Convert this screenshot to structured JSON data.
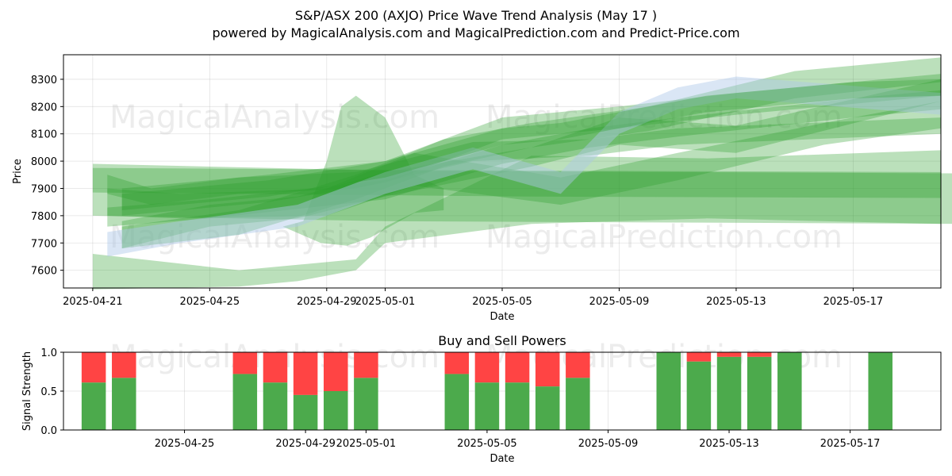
{
  "title": "S&P/ASX 200 (AXJO) Price Wave Trend Analysis (May 17 )",
  "subtitle": "powered by MagicalAnalysis.com and MagicalPrediction.com and Predict-Price.com",
  "watermarks": [
    "MagicalAnalysis.com",
    "MagicalPrediction.com"
  ],
  "colors": {
    "green": "#2ca02c",
    "red": "#ff4444",
    "blue": "#aec7e8",
    "bar_green": "#4caa4c"
  },
  "chart_data": [
    {
      "type": "area",
      "title": "",
      "xlabel": "Date",
      "ylabel": "Price",
      "xlim": [
        "2025-04-20",
        "2025-05-20"
      ],
      "ylim": [
        7535,
        8390
      ],
      "x_ticks": [
        "2025-04-21",
        "2025-04-25",
        "2025-04-29",
        "2025-05-01",
        "2025-05-05",
        "2025-05-09",
        "2025-05-13",
        "2025-05-17"
      ],
      "y_ticks": [
        7600,
        7700,
        7800,
        7900,
        8000,
        8100,
        8200,
        8300
      ],
      "grid": true,
      "series": [
        {
          "color": "green",
          "upper": [
            [
              0.0,
              7990
            ],
            [
              10.0,
              7965
            ],
            [
              20.0,
              7960
            ],
            [
              30.0,
              7955
            ]
          ],
          "lower": [
            [
              0.0,
              7800
            ],
            [
              10.0,
              7780
            ],
            [
              20.0,
              7775
            ],
            [
              30.0,
              7770
            ]
          ]
        },
        {
          "color": "green",
          "upper": [
            [
              0.0,
              7975
            ],
            [
              15.0,
              7965
            ],
            [
              29.0,
              7960
            ]
          ],
          "lower": [
            [
              0.0,
              7885
            ],
            [
              15.0,
              7870
            ],
            [
              29.0,
              7865
            ]
          ]
        },
        {
          "color": "green",
          "upper": [
            [
              0.0,
              7660
            ],
            [
              5.0,
              7600
            ],
            [
              9.0,
              7640
            ],
            [
              10.0,
              7760
            ],
            [
              15.0,
              8020
            ],
            [
              21.0,
              8010
            ],
            [
              29.0,
              8040
            ]
          ],
          "lower": [
            [
              0.0,
              7530
            ],
            [
              5.0,
              7540
            ],
            [
              7.0,
              7560
            ],
            [
              9.0,
              7600
            ],
            [
              10.0,
              7700
            ],
            [
              15.0,
              7770
            ],
            [
              21.0,
              7790
            ],
            [
              29.0,
              7770
            ]
          ]
        },
        {
          "color": "green",
          "upper": [
            [
              7.2,
              7780
            ],
            [
              8.0,
              8000
            ],
            [
              8.5,
              8200
            ],
            [
              9.0,
              8240
            ],
            [
              10.0,
              8160
            ],
            [
              11.0,
              7950
            ],
            [
              12.0,
              7900
            ]
          ],
          "lower": [
            [
              6.5,
              7760
            ],
            [
              7.8,
              7700
            ],
            [
              8.7,
              7690
            ],
            [
              9.5,
              7720
            ],
            [
              11.0,
              7810
            ],
            [
              12.0,
              7820
            ]
          ]
        },
        {
          "color": "green",
          "upper": [
            [
              1.0,
              7780
            ],
            [
              4.0,
              7840
            ],
            [
              7.0,
              7870
            ],
            [
              10.0,
              7960
            ],
            [
              15.0,
              8050
            ],
            [
              18.0,
              8160
            ],
            [
              22.0,
              8130
            ],
            [
              29.0,
              8300
            ]
          ],
          "lower": [
            [
              1.0,
              7680
            ],
            [
              4.0,
              7760
            ],
            [
              7.0,
              7790
            ],
            [
              10.0,
              7870
            ],
            [
              15.0,
              7980
            ],
            [
              18.0,
              8060
            ],
            [
              22.0,
              8030
            ],
            [
              29.0,
              8220
            ]
          ]
        },
        {
          "color": "green",
          "upper": [
            [
              1.0,
              7760
            ],
            [
              5.0,
              7820
            ],
            [
              9.0,
              7950
            ],
            [
              12.0,
              8080
            ],
            [
              15.0,
              8140
            ],
            [
              19.0,
              8200
            ],
            [
              24.0,
              8330
            ],
            [
              29.0,
              8380
            ]
          ],
          "lower": [
            [
              1.0,
              7680
            ],
            [
              5.0,
              7730
            ],
            [
              9.0,
              7860
            ],
            [
              12.0,
              7980
            ],
            [
              15.0,
              8050
            ],
            [
              19.0,
              8110
            ],
            [
              24.0,
              8230
            ],
            [
              29.0,
              8290
            ]
          ]
        },
        {
          "color": "green",
          "upper": [
            [
              0.5,
              7900
            ],
            [
              3.0,
              7880
            ],
            [
              8.0,
              7900
            ],
            [
              11.0,
              8030
            ],
            [
              16.0,
              7940
            ],
            [
              20.0,
              8030
            ],
            [
              25.0,
              8140
            ],
            [
              29.0,
              8220
            ]
          ],
          "lower": [
            [
              0.5,
              7800
            ],
            [
              3.0,
              7790
            ],
            [
              8.0,
              7800
            ],
            [
              11.0,
              7910
            ],
            [
              16.0,
              7840
            ],
            [
              20.0,
              7930
            ],
            [
              25.0,
              8060
            ],
            [
              29.0,
              8120
            ]
          ]
        },
        {
          "color": "green",
          "upper": [
            [
              1.0,
              7900
            ],
            [
              6.0,
              7950
            ],
            [
              10.0,
              8000
            ],
            [
              14.0,
              8160
            ],
            [
              18.0,
              8200
            ],
            [
              22.0,
              8250
            ],
            [
              29.0,
              8320
            ]
          ],
          "lower": [
            [
              1.0,
              7800
            ],
            [
              6.0,
              7850
            ],
            [
              10.0,
              7920
            ],
            [
              14.0,
              8080
            ],
            [
              18.0,
              8120
            ],
            [
              22.0,
              8170
            ],
            [
              29.0,
              8240
            ]
          ]
        },
        {
          "color": "green",
          "upper": [
            [
              0.5,
              7830
            ],
            [
              4.0,
              7860
            ],
            [
              10.0,
              7930
            ],
            [
              14.0,
              8060
            ],
            [
              17.0,
              8120
            ],
            [
              20.0,
              8160
            ],
            [
              26.0,
              8230
            ],
            [
              29.0,
              8260
            ]
          ],
          "lower": [
            [
              0.5,
              7760
            ],
            [
              4.0,
              7790
            ],
            [
              10.0,
              7860
            ],
            [
              14.0,
              7990
            ],
            [
              17.0,
              8050
            ],
            [
              20.0,
              8090
            ],
            [
              26.0,
              8160
            ],
            [
              29.0,
              8190
            ]
          ]
        },
        {
          "color": "green",
          "upper": [
            [
              0.5,
              7950
            ],
            [
              2.0,
              7900
            ],
            [
              5.0,
              7940
            ],
            [
              9.0,
              7960
            ],
            [
              13.0,
              8070
            ],
            [
              17.0,
              8080
            ],
            [
              20.0,
              8120
            ],
            [
              29.0,
              8160
            ]
          ],
          "lower": [
            [
              0.5,
              7880
            ],
            [
              2.0,
              7840
            ],
            [
              5.0,
              7880
            ],
            [
              9.0,
              7900
            ],
            [
              13.0,
              8000
            ],
            [
              17.0,
              8020
            ],
            [
              20.0,
              8060
            ],
            [
              29.0,
              8100
            ]
          ]
        },
        {
          "color": "blue",
          "upper": [
            [
              0.5,
              7740
            ],
            [
              3.0,
              7780
            ],
            [
              7.0,
              7840
            ],
            [
              10.0,
              7960
            ],
            [
              13.0,
              8050
            ],
            [
              16.0,
              7960
            ],
            [
              18.0,
              8180
            ],
            [
              20.0,
              8270
            ],
            [
              22.0,
              8310
            ],
            [
              29.0,
              8250
            ]
          ],
          "lower": [
            [
              0.5,
              7650
            ],
            [
              3.0,
              7700
            ],
            [
              7.0,
              7760
            ],
            [
              10.0,
              7880
            ],
            [
              13.0,
              7970
            ],
            [
              16.0,
              7880
            ],
            [
              18.0,
              8100
            ],
            [
              20.0,
              8190
            ],
            [
              22.0,
              8230
            ],
            [
              29.0,
              8170
            ]
          ]
        },
        {
          "color": "green",
          "upper": [
            [
              1.0,
              7880
            ],
            [
              6.0,
              7930
            ],
            [
              10.0,
              8000
            ],
            [
              14.0,
              8120
            ],
            [
              16.0,
              8140
            ],
            [
              21.0,
              8240
            ],
            [
              26.0,
              8290
            ],
            [
              29.0,
              8300
            ]
          ],
          "lower": [
            [
              1.0,
              7820
            ],
            [
              6.0,
              7870
            ],
            [
              10.0,
              7940
            ],
            [
              14.0,
              8060
            ],
            [
              16.0,
              8080
            ],
            [
              21.0,
              8180
            ],
            [
              26.0,
              8230
            ],
            [
              29.0,
              8240
            ]
          ]
        }
      ]
    },
    {
      "type": "bar",
      "title": "Buy and Sell Powers",
      "xlabel": "Date",
      "ylabel": "Signal Strength",
      "xlim": [
        "2025-04-21",
        "2025-05-20"
      ],
      "ylim": [
        0,
        1.0
      ],
      "x_ticks": [
        "2025-04-25",
        "2025-04-29",
        "2025-05-01",
        "2025-05-05",
        "2025-05-09",
        "2025-05-13",
        "2025-05-17"
      ],
      "y_ticks": [
        0.0,
        0.5,
        1.0
      ],
      "series": [
        {
          "name": "Buy",
          "color": "green"
        },
        {
          "name": "Sell",
          "color": "red"
        }
      ],
      "bars": [
        {
          "date": "2025-04-22",
          "buy": 0.61
        },
        {
          "date": "2025-04-23",
          "buy": 0.67
        },
        {
          "date": "2025-04-27",
          "buy": 0.72
        },
        {
          "date": "2025-04-28",
          "buy": 0.61
        },
        {
          "date": "2025-04-29",
          "buy": 0.45
        },
        {
          "date": "2025-04-30",
          "buy": 0.5
        },
        {
          "date": "2025-05-01",
          "buy": 0.67
        },
        {
          "date": "2025-05-04",
          "buy": 0.72
        },
        {
          "date": "2025-05-05",
          "buy": 0.61
        },
        {
          "date": "2025-05-06",
          "buy": 0.61
        },
        {
          "date": "2025-05-07",
          "buy": 0.56
        },
        {
          "date": "2025-05-08",
          "buy": 0.67
        },
        {
          "date": "2025-05-11",
          "buy": 1.0
        },
        {
          "date": "2025-05-12",
          "buy": 0.88
        },
        {
          "date": "2025-05-13",
          "buy": 0.94
        },
        {
          "date": "2025-05-14",
          "buy": 0.94
        },
        {
          "date": "2025-05-15",
          "buy": 1.0
        },
        {
          "date": "2025-05-18",
          "buy": 1.0
        }
      ]
    }
  ]
}
